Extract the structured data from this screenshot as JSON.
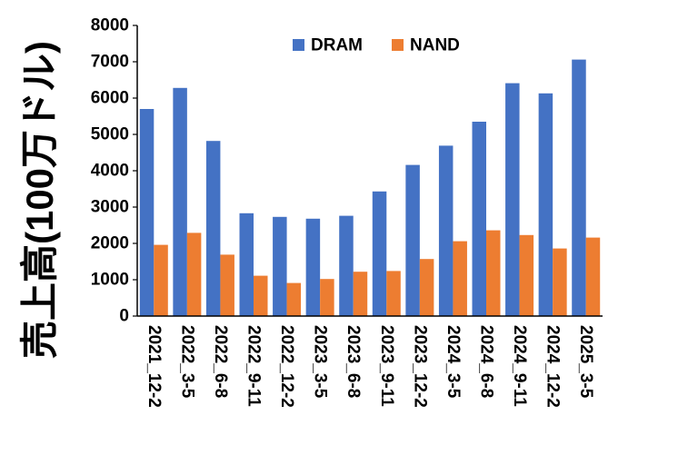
{
  "chart_data": {
    "type": "bar",
    "title": "",
    "xlabel": "",
    "ylabel": "売上高(100万ドル)",
    "ylim": [
      0,
      8000
    ],
    "yticks": [
      0,
      1000,
      2000,
      3000,
      4000,
      5000,
      6000,
      7000,
      8000
    ],
    "grid": false,
    "legend_position": "top-center",
    "categories": [
      "2021_12-2",
      "2022_3-5",
      "2022_6-8",
      "2022_9-11",
      "2022_12-2",
      "2023_3-5",
      "2023_6-8",
      "2023_9-11",
      "2023_12-2",
      "2024_3-5",
      "2024_6-8",
      "2024_9-11",
      "2024_12-2",
      "2025_3-5"
    ],
    "series": [
      {
        "name": "DRAM",
        "color": "#4472C4",
        "values": [
          5700,
          6280,
          4820,
          2830,
          2730,
          2680,
          2760,
          3430,
          4160,
          4690,
          5350,
          6410,
          6130,
          7060
        ]
      },
      {
        "name": "NAND",
        "color": "#ED7D31",
        "values": [
          1960,
          2290,
          1690,
          1110,
          910,
          1020,
          1220,
          1240,
          1570,
          2060,
          2360,
          2230,
          1860,
          2160
        ]
      }
    ]
  }
}
